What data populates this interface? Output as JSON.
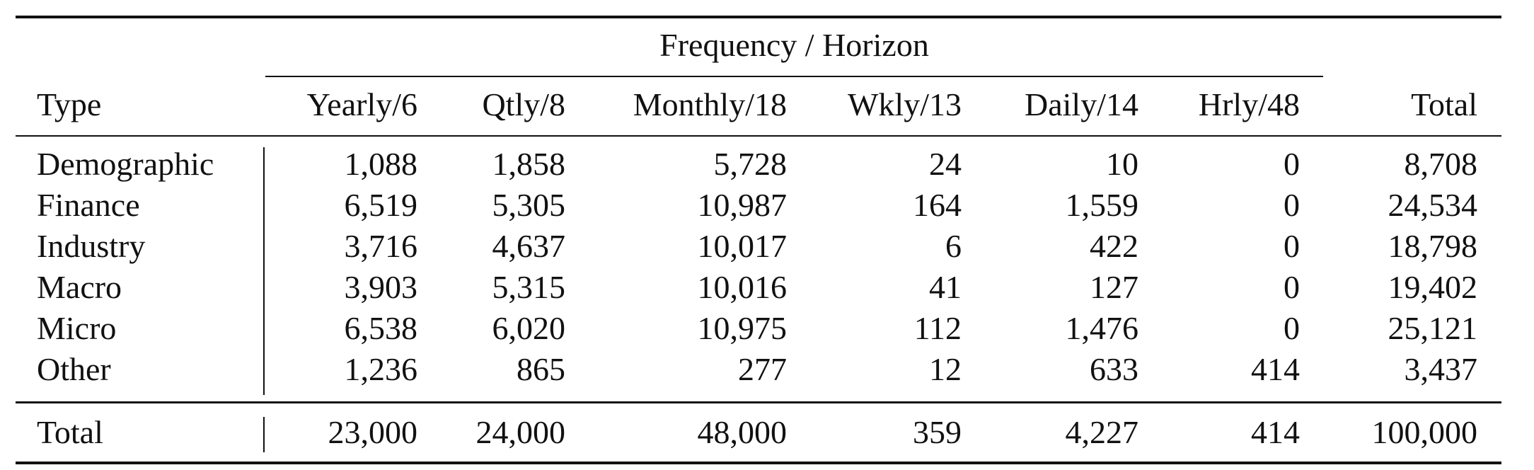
{
  "table": {
    "group_header": "Frequency / Horizon",
    "columns": [
      "Type",
      "Yearly/6",
      "Qtly/8",
      "Monthly/18",
      "Wkly/13",
      "Daily/14",
      "Hrly/48",
      "Total"
    ],
    "rows": [
      {
        "type": "Demographic",
        "values": [
          "1,088",
          "1,858",
          "5,728",
          "24",
          "10",
          "0",
          "8,708"
        ]
      },
      {
        "type": "Finance",
        "values": [
          "6,519",
          "5,305",
          "10,987",
          "164",
          "1,559",
          "0",
          "24,534"
        ]
      },
      {
        "type": "Industry",
        "values": [
          "3,716",
          "4,637",
          "10,017",
          "6",
          "422",
          "0",
          "18,798"
        ]
      },
      {
        "type": "Macro",
        "values": [
          "3,903",
          "5,315",
          "10,016",
          "41",
          "127",
          "0",
          "19,402"
        ]
      },
      {
        "type": "Micro",
        "values": [
          "6,538",
          "6,020",
          "10,975",
          "112",
          "1,476",
          "0",
          "25,121"
        ]
      },
      {
        "type": "Other",
        "values": [
          "1,236",
          "865",
          "277",
          "12",
          "633",
          "414",
          "3,437"
        ]
      }
    ],
    "total_row": {
      "type": "Total",
      "values": [
        "23,000",
        "24,000",
        "48,000",
        "359",
        "4,227",
        "414",
        "100,000"
      ]
    }
  },
  "chart_data": {
    "type": "table",
    "columns": [
      "Type",
      "Yearly/6",
      "Qtly/8",
      "Monthly/18",
      "Wkly/13",
      "Daily/14",
      "Hrly/48",
      "Total"
    ],
    "rows": [
      [
        "Demographic",
        1088,
        1858,
        5728,
        24,
        10,
        0,
        8708
      ],
      [
        "Finance",
        6519,
        5305,
        10987,
        164,
        1559,
        0,
        24534
      ],
      [
        "Industry",
        3716,
        4637,
        10017,
        6,
        422,
        0,
        18798
      ],
      [
        "Macro",
        3903,
        5315,
        10016,
        41,
        127,
        0,
        19402
      ],
      [
        "Micro",
        6538,
        6020,
        10975,
        112,
        1476,
        0,
        25121
      ],
      [
        "Other",
        1236,
        865,
        277,
        12,
        633,
        414,
        3437
      ],
      [
        "Total",
        23000,
        24000,
        48000,
        359,
        4227,
        414,
        100000
      ]
    ]
  }
}
